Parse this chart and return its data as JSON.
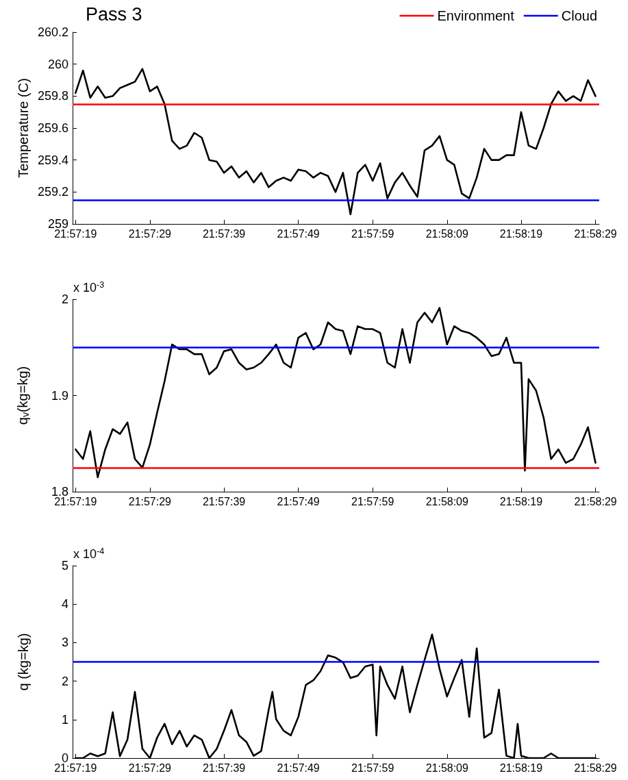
{
  "chart_data": [
    {
      "type": "line",
      "title": "Pass 3",
      "ylabel": "Temperature (C)",
      "legend": "top right",
      "xlim": [
        21.95517,
        21.97486
      ],
      "ylim": [
        259,
        260.2
      ],
      "yticks": [
        259,
        259.2,
        259.4,
        259.6,
        259.8,
        260,
        260.2
      ],
      "xticks": [
        {
          "value": 21.95528,
          "label": "21:57:19"
        },
        {
          "value": 21.95806,
          "label": "21:57:29"
        },
        {
          "value": 21.96083,
          "label": "21:57:39"
        },
        {
          "value": 21.96361,
          "label": "21:57:49"
        },
        {
          "value": 21.96639,
          "label": "21:57:59"
        },
        {
          "value": 21.96917,
          "label": "21:58:09"
        },
        {
          "value": 21.97194,
          "label": "21:58:19"
        },
        {
          "value": 21.97472,
          "label": "21:58:29"
        }
      ],
      "x": [
        21.95528,
        21.95556,
        21.95583,
        21.95611,
        21.95639,
        21.95667,
        21.95694,
        21.95722,
        21.9575,
        21.95778,
        21.95806,
        21.95833,
        21.95861,
        21.95889,
        21.95917,
        21.95944,
        21.95972,
        21.96,
        21.96028,
        21.96056,
        21.96083,
        21.96111,
        21.96139,
        21.96167,
        21.96194,
        21.96222,
        21.9625,
        21.96278,
        21.96306,
        21.96333,
        21.96361,
        21.96389,
        21.96417,
        21.96444,
        21.96472,
        21.965,
        21.96528,
        21.96556,
        21.96583,
        21.96611,
        21.96639,
        21.96667,
        21.96694,
        21.96722,
        21.9675,
        21.96778,
        21.96806,
        21.96833,
        21.96861,
        21.96889,
        21.96917,
        21.96944,
        21.96972,
        21.97,
        21.97028,
        21.97056,
        21.97083,
        21.97111,
        21.97139,
        21.97167,
        21.97194,
        21.97222,
        21.9725,
        21.97278,
        21.97306,
        21.97333,
        21.97361,
        21.97389,
        21.97417,
        21.97444,
        21.97472
      ],
      "series": [
        {
          "color": "#000000",
          "values": [
            259.82,
            259.96,
            259.79,
            259.86,
            259.79,
            259.8,
            259.85,
            259.87,
            259.89,
            259.97,
            259.83,
            259.86,
            259.75,
            259.52,
            259.47,
            259.49,
            259.57,
            259.54,
            259.4,
            259.39,
            259.32,
            259.36,
            259.29,
            259.33,
            259.26,
            259.32,
            259.23,
            259.27,
            259.29,
            259.27,
            259.34,
            259.33,
            259.29,
            259.32,
            259.3,
            259.2,
            259.32,
            259.06,
            259.32,
            259.37,
            259.27,
            259.38,
            259.16,
            259.26,
            259.32,
            259.24,
            259.17,
            259.46,
            259.49,
            259.55,
            259.4,
            259.37,
            259.19,
            259.16,
            259.29,
            259.47,
            259.4,
            259.4,
            259.43,
            259.43,
            259.7,
            259.49,
            259.47,
            259.6,
            259.75,
            259.83,
            259.77,
            259.8,
            259.77,
            259.9,
            259.8
          ]
        }
      ],
      "ref_lines": [
        {
          "axis": "y",
          "value": 259.75,
          "label": "Environment",
          "color": "#ff0000"
        },
        {
          "axis": "y",
          "value": 259.15,
          "label": "Cloud",
          "color": "#0000ff"
        }
      ]
    },
    {
      "type": "line",
      "ylabel": "q$_{v}$(kg=kg)",
      "annotations": [
        "x 10$^{-3}$"
      ],
      "xlim": [
        21.95517,
        21.97486
      ],
      "ylim": [
        1.8,
        2
      ],
      "yticks": [
        1.8,
        1.9,
        2
      ],
      "xticks": [
        {
          "value": 21.95528,
          "label": "21:57:19"
        },
        {
          "value": 21.95806,
          "label": "21:57:29"
        },
        {
          "value": 21.96083,
          "label": "21:57:39"
        },
        {
          "value": 21.96361,
          "label": "21:57:49"
        },
        {
          "value": 21.96639,
          "label": "21:57:59"
        },
        {
          "value": 21.96917,
          "label": "21:58:09"
        },
        {
          "value": 21.97194,
          "label": "21:58:19"
        },
        {
          "value": 21.97472,
          "label": "21:58:29"
        }
      ],
      "x": [
        21.95528,
        21.95556,
        21.95583,
        21.95611,
        21.95639,
        21.95667,
        21.95694,
        21.95722,
        21.9575,
        21.95778,
        21.95806,
        21.95833,
        21.95861,
        21.95889,
        21.95917,
        21.95944,
        21.95972,
        21.96,
        21.96028,
        21.96056,
        21.96083,
        21.96111,
        21.96139,
        21.96167,
        21.96194,
        21.96222,
        21.9625,
        21.96278,
        21.96306,
        21.96333,
        21.96361,
        21.96389,
        21.96417,
        21.96444,
        21.96472,
        21.965,
        21.96528,
        21.96556,
        21.96583,
        21.96611,
        21.96639,
        21.96667,
        21.96694,
        21.96722,
        21.9675,
        21.96778,
        21.96806,
        21.96833,
        21.96861,
        21.96889,
        21.96917,
        21.96944,
        21.96972,
        21.97,
        21.97028,
        21.97056,
        21.97083,
        21.97111,
        21.97139,
        21.97167,
        21.97194,
        21.97208,
        21.97222,
        21.9725,
        21.97278,
        21.97306,
        21.97333,
        21.97361,
        21.97389,
        21.97417,
        21.97444,
        21.97472
      ],
      "series": [
        {
          "color": "#000000",
          "values": [
            1.844,
            1.834,
            1.863,
            1.815,
            1.844,
            1.865,
            1.86,
            1.872,
            1.834,
            1.825,
            1.849,
            1.882,
            1.915,
            1.953,
            1.948,
            1.948,
            1.943,
            1.943,
            1.922,
            1.929,
            1.946,
            1.948,
            1.934,
            1.927,
            1.929,
            1.934,
            1.943,
            1.953,
            1.934,
            1.929,
            1.96,
            1.965,
            1.948,
            1.953,
            1.976,
            1.969,
            1.967,
            1.943,
            1.972,
            1.969,
            1.969,
            1.965,
            1.934,
            1.929,
            1.969,
            1.934,
            1.976,
            1.986,
            1.976,
            1.991,
            1.953,
            1.972,
            1.967,
            1.965,
            1.96,
            1.953,
            1.941,
            1.943,
            1.96,
            1.934,
            1.934,
            1.822,
            1.917,
            1.905,
            1.877,
            1.834,
            1.844,
            1.83,
            1.834,
            1.849,
            1.867,
            1.83
          ]
        }
      ],
      "ref_lines": [
        {
          "axis": "y",
          "value": 1.825,
          "color": "#ff0000"
        },
        {
          "axis": "y",
          "value": 1.95,
          "color": "#0000ff"
        }
      ]
    },
    {
      "type": "line",
      "ylabel": "q (kg=kg)",
      "annotations": [
        "x 10$^{-4}$"
      ],
      "xlim": [
        21.95517,
        21.97486
      ],
      "ylim": [
        0,
        5
      ],
      "yticks": [
        0,
        1,
        2,
        3,
        4,
        5
      ],
      "xticks": [
        {
          "value": 21.95528,
          "label": "21:57:19"
        },
        {
          "value": 21.95806,
          "label": "21:57:29"
        },
        {
          "value": 21.96083,
          "label": "21:57:39"
        },
        {
          "value": 21.96361,
          "label": "21:57:49"
        },
        {
          "value": 21.96639,
          "label": "21:57:59"
        },
        {
          "value": 21.96917,
          "label": "21:58:09"
        },
        {
          "value": 21.97194,
          "label": "21:58:19"
        },
        {
          "value": 21.97472,
          "label": "21:58:29"
        }
      ],
      "x": [
        21.95528,
        21.95556,
        21.95583,
        21.95611,
        21.95639,
        21.95667,
        21.95694,
        21.95722,
        21.9575,
        21.95778,
        21.95806,
        21.95833,
        21.95861,
        21.95889,
        21.95917,
        21.95944,
        21.95972,
        21.96,
        21.96028,
        21.96056,
        21.96083,
        21.96111,
        21.96139,
        21.96167,
        21.96194,
        21.96222,
        21.9625,
        21.96264,
        21.96278,
        21.96306,
        21.96333,
        21.96361,
        21.96389,
        21.96417,
        21.96444,
        21.96472,
        21.965,
        21.96528,
        21.96556,
        21.96583,
        21.96611,
        21.96639,
        21.96653,
        21.96667,
        21.96694,
        21.96722,
        21.9675,
        21.96778,
        21.96806,
        21.96833,
        21.96861,
        21.96889,
        21.96917,
        21.96944,
        21.96972,
        21.97,
        21.97028,
        21.97056,
        21.97083,
        21.97111,
        21.97139,
        21.97167,
        21.97181,
        21.97194,
        21.97222,
        21.9725,
        21.97278,
        21.97306,
        21.97333,
        21.97361,
        21.97389,
        21.97417,
        21.97444,
        21.97472
      ],
      "series": [
        {
          "color": "#000000",
          "values": [
            0,
            0,
            0.12,
            0.05,
            0.12,
            1.19,
            0.05,
            0.48,
            1.72,
            0.24,
            0,
            0.53,
            0.89,
            0.36,
            0.71,
            0.3,
            0.59,
            0.48,
            0,
            0.24,
            0.71,
            1.25,
            0.59,
            0.42,
            0.06,
            0.18,
            1.25,
            1.72,
            1.01,
            0.71,
            0.59,
            1.07,
            1.9,
            2.02,
            2.26,
            2.67,
            2.61,
            2.49,
            2.08,
            2.14,
            2.38,
            2.43,
            0.59,
            2.38,
            1.9,
            1.54,
            2.38,
            1.19,
            1.9,
            2.55,
            3.21,
            2.32,
            1.6,
            2.08,
            2.55,
            1.07,
            2.85,
            0.53,
            0.65,
            1.78,
            0.06,
            0,
            0.89,
            0.06,
            0,
            0,
            0,
            0.12,
            0,
            0,
            0,
            0,
            0,
            0
          ]
        }
      ],
      "ref_lines": [
        {
          "axis": "y",
          "value": 2.5,
          "color": "#0000ff"
        }
      ]
    }
  ]
}
